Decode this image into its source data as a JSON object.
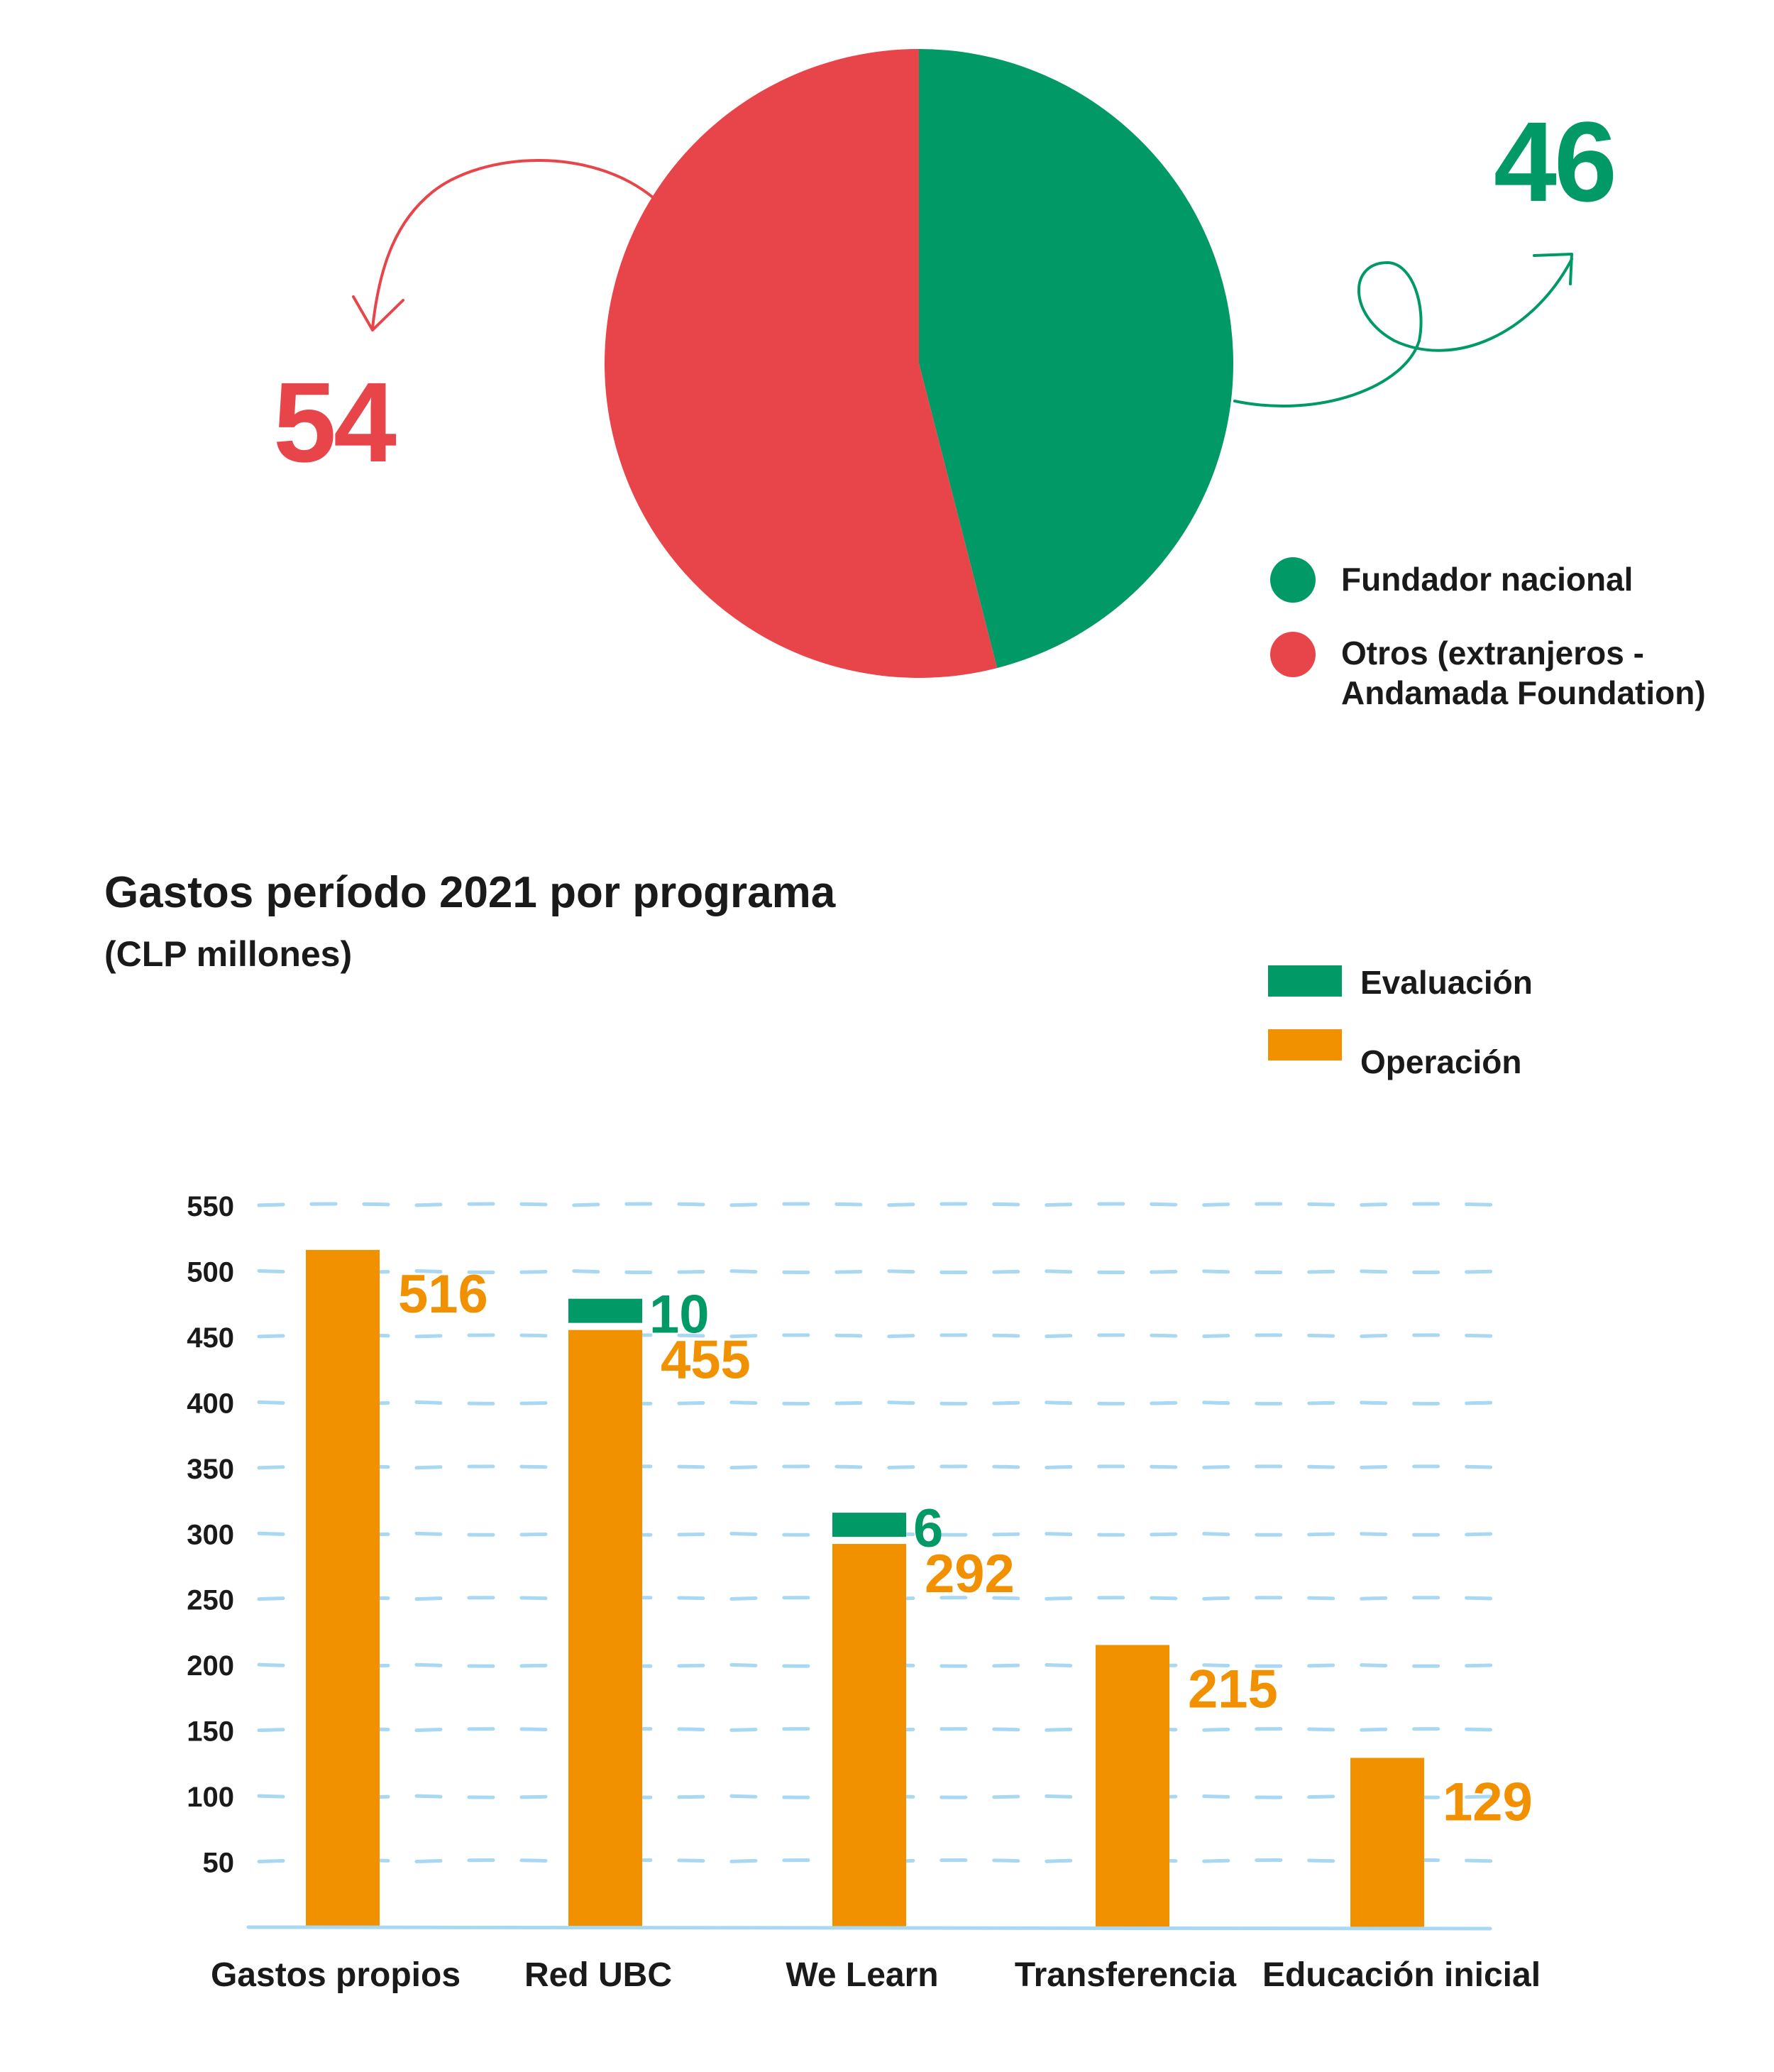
{
  "pie": {
    "left_value": "54",
    "right_value": "46",
    "legend": [
      {
        "label": "Fundador nacional",
        "color": "#019966"
      },
      {
        "label": "Otros (extranjeros - Andamada Foundation)",
        "color": "#e8454a"
      }
    ]
  },
  "bar": {
    "title": "Gastos período 2021 por programa",
    "subtitle": "(CLP millones)",
    "legend": [
      {
        "label": "Evaluación",
        "color": "#019966"
      },
      {
        "label": "Operación",
        "color": "#f19100"
      }
    ]
  },
  "chart_data": [
    {
      "type": "pie",
      "slices": [
        {
          "name": "Fundador nacional",
          "value": 46,
          "color": "#019966"
        },
        {
          "name": "Otros (extranjeros - Andamada Foundation)",
          "value": 54,
          "color": "#e8454a"
        }
      ]
    },
    {
      "type": "bar",
      "title": "Gastos período 2021 por programa",
      "subtitle": "(CLP millones)",
      "categories": [
        "Gastos propios",
        "Red UBC",
        "We Learn",
        "Transferencia",
        "Educación inicial"
      ],
      "series": [
        {
          "name": "Operación",
          "color": "#f19100",
          "values": [
            516,
            455,
            292,
            215,
            129
          ],
          "labels": [
            "516",
            "455",
            "292",
            "215",
            "129"
          ]
        },
        {
          "name": "Evaluación",
          "color": "#019966",
          "values": [
            null,
            10,
            6,
            null,
            null
          ],
          "labels": [
            "",
            "10",
            "6",
            "",
            ""
          ]
        }
      ],
      "yticks": [
        "50",
        "100",
        "150",
        "200",
        "250",
        "300",
        "350",
        "400",
        "450",
        "500",
        "550"
      ],
      "ylim": [
        0,
        550
      ],
      "xlabel": "",
      "ylabel": ""
    }
  ]
}
